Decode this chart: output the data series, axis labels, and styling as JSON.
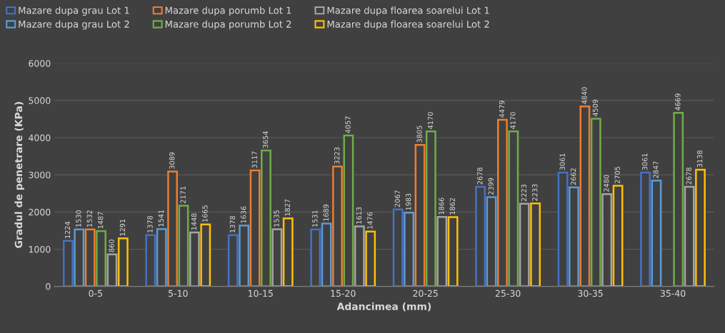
{
  "chart_data": {
    "type": "bar",
    "xlabel": "Adancimea (mm)",
    "ylabel": "Gradul de penetrare (KPa)",
    "categories": [
      "0-5",
      "5-10",
      "10-15",
      "15-20",
      "20-25",
      "25-30",
      "30-35",
      "35-40"
    ],
    "series": [
      {
        "name": "Mazare dupa grau Lot 1",
        "color": "#4472c4",
        "values": [
          1224,
          1378,
          1378,
          1531,
          2067,
          2678,
          3061,
          3061
        ]
      },
      {
        "name": "Mazare dupa grau Lot 2",
        "color": "#5b9bd5",
        "values": [
          1530,
          1541,
          1636,
          1689,
          1983,
          2399,
          2662,
          2847
        ]
      },
      {
        "name": "Mazare dupa porumb Lot 1",
        "color": "#ed7d31",
        "values": [
          1532,
          3089,
          3117,
          3223,
          3805,
          4479,
          4840,
          null
        ]
      },
      {
        "name": "Mazare dupa porumb Lot 2",
        "color": "#70ad47",
        "values": [
          1487,
          2171,
          3654,
          4057,
          4170,
          4170,
          4509,
          4669
        ]
      },
      {
        "name": "Mazare dupa floarea soarelui Lot 1",
        "color": "#a5a5a5",
        "values": [
          860,
          1448,
          1535,
          1613,
          1866,
          2223,
          2480,
          2678
        ]
      },
      {
        "name": "Mazare dupa floarea soarelui Lot 2",
        "color": "#ffc000",
        "values": [
          1291,
          1665,
          1827,
          1476,
          1862,
          2233,
          2705,
          3138
        ]
      }
    ],
    "ylim": [
      0,
      6000
    ],
    "yticks": [
      0,
      1000,
      2000,
      3000,
      4000,
      5000,
      6000
    ],
    "grid": "y",
    "legend": "top",
    "data_labels": true
  }
}
